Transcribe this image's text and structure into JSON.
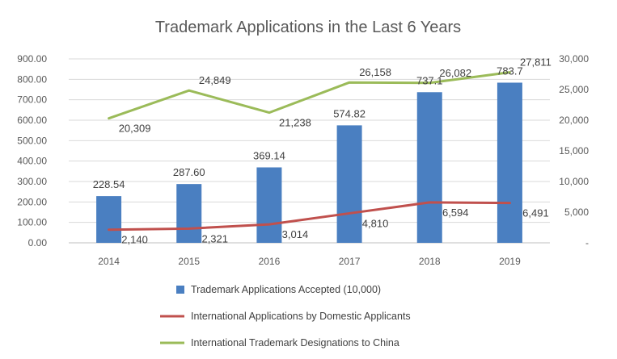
{
  "chart_data": {
    "type": "bar",
    "title": "Trademark Applications  in the Last 6 Years",
    "categories": [
      "2014",
      "2015",
      "2016",
      "2017",
      "2018",
      "2019"
    ],
    "y_left": {
      "min": 0,
      "max": 900,
      "step": 100,
      "tick_labels": [
        "0.00",
        "100.00",
        "200.00",
        "300.00",
        "400.00",
        "500.00",
        "600.00",
        "700.00",
        "800.00",
        "900.00"
      ]
    },
    "y_right": {
      "min": 0,
      "max": 30000,
      "step": 5000,
      "tick_labels": [
        "-",
        "5,000",
        "10,000",
        "15,000",
        "20,000",
        "25,000",
        "30,000"
      ]
    },
    "series": [
      {
        "name": "Trademark Applications Accepted (10,000)",
        "kind": "bar",
        "axis": "left",
        "color": "#4a7fc1",
        "values": [
          228.54,
          287.6,
          369.14,
          574.82,
          737.1,
          783.7
        ],
        "labels": [
          "228.54",
          "287.60",
          "369.14",
          "574.82",
          "737.1",
          "783.7"
        ]
      },
      {
        "name": "International Applications by Domestic Applicants",
        "kind": "line",
        "axis": "right",
        "color": "#c0504d",
        "values": [
          2140,
          2321,
          3014,
          4810,
          6594,
          6491
        ],
        "labels": [
          "2,140",
          "2,321",
          "3,014",
          "4,810",
          "6,594",
          "6,491"
        ]
      },
      {
        "name": "International Trademark Designations to China",
        "kind": "line",
        "axis": "right",
        "color": "#9bbb59",
        "values": [
          20309,
          24849,
          21238,
          26158,
          26082,
          27811
        ],
        "labels": [
          "20,309",
          "24,849",
          "21,238",
          "26,158",
          "26,082",
          "27,811"
        ]
      }
    ],
    "grid": true,
    "legend_position": "bottom"
  }
}
